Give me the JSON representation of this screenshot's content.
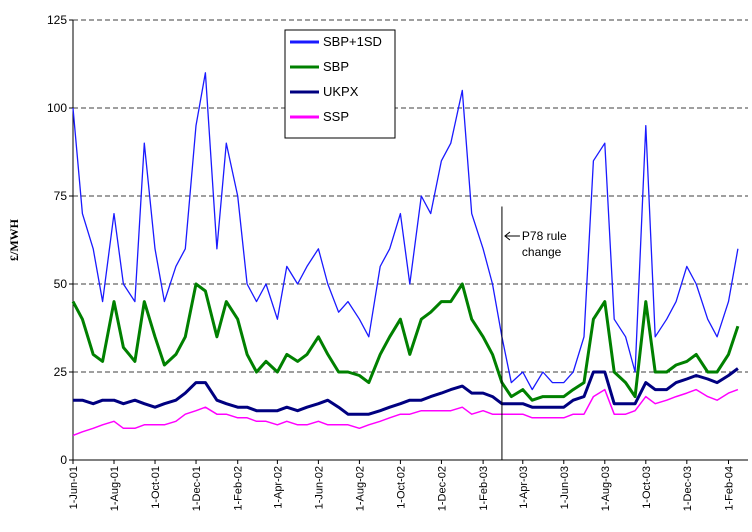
{
  "chart_data": {
    "type": "line",
    "ylabel": "£/MWH",
    "x": [
      "2001-06-01",
      "2001-06-15",
      "2001-07-01",
      "2001-07-15",
      "2001-08-01",
      "2001-08-15",
      "2001-09-01",
      "2001-09-15",
      "2001-10-01",
      "2001-10-15",
      "2001-11-01",
      "2001-11-15",
      "2001-12-01",
      "2001-12-15",
      "2002-01-01",
      "2002-01-15",
      "2002-02-01",
      "2002-02-15",
      "2002-03-01",
      "2002-03-15",
      "2002-04-01",
      "2002-04-15",
      "2002-05-01",
      "2002-05-15",
      "2002-06-01",
      "2002-06-15",
      "2002-07-01",
      "2002-07-15",
      "2002-08-01",
      "2002-08-15",
      "2002-09-01",
      "2002-09-15",
      "2002-10-01",
      "2002-10-15",
      "2002-11-01",
      "2002-11-15",
      "2002-12-01",
      "2002-12-15",
      "2003-01-01",
      "2003-01-15",
      "2003-02-01",
      "2003-02-15",
      "2003-03-01",
      "2003-03-15",
      "2003-04-01",
      "2003-04-15",
      "2003-05-01",
      "2003-05-15",
      "2003-06-01",
      "2003-06-15",
      "2003-07-01",
      "2003-07-15",
      "2003-08-01",
      "2003-08-15",
      "2003-09-01",
      "2003-09-15",
      "2003-10-01",
      "2003-10-15",
      "2003-11-01",
      "2003-11-15",
      "2003-12-01",
      "2003-12-15",
      "2004-01-01",
      "2004-01-15",
      "2004-02-01",
      "2004-02-15"
    ],
    "series": [
      {
        "name": "SBP+1SD",
        "color": "#1a1aff",
        "width": 1.3,
        "values": [
          100,
          70,
          60,
          45,
          70,
          50,
          45,
          90,
          60,
          45,
          55,
          60,
          95,
          110,
          60,
          90,
          75,
          50,
          45,
          50,
          40,
          55,
          50,
          55,
          60,
          50,
          42,
          45,
          40,
          35,
          55,
          60,
          70,
          50,
          75,
          70,
          85,
          90,
          105,
          70,
          60,
          50,
          35,
          22,
          25,
          20,
          25,
          22,
          22,
          25,
          35,
          85,
          90,
          40,
          35,
          25,
          95,
          35,
          40,
          45,
          55,
          50,
          40,
          35,
          45,
          60
        ]
      },
      {
        "name": "SBP",
        "color": "#008000",
        "width": 3,
        "values": [
          45,
          40,
          30,
          28,
          45,
          32,
          28,
          45,
          35,
          27,
          30,
          35,
          50,
          48,
          35,
          45,
          40,
          30,
          25,
          28,
          25,
          30,
          28,
          30,
          35,
          30,
          25,
          25,
          24,
          22,
          30,
          35,
          40,
          30,
          40,
          42,
          45,
          45,
          50,
          40,
          35,
          30,
          22,
          18,
          20,
          17,
          18,
          18,
          18,
          20,
          22,
          40,
          45,
          25,
          22,
          18,
          45,
          25,
          25,
          27,
          28,
          30,
          25,
          25,
          30,
          38
        ]
      },
      {
        "name": "UKPX",
        "color": "#000080",
        "width": 3,
        "values": [
          17,
          17,
          16,
          17,
          17,
          16,
          17,
          16,
          15,
          16,
          17,
          19,
          22,
          22,
          17,
          16,
          15,
          15,
          14,
          14,
          14,
          15,
          14,
          15,
          16,
          17,
          15,
          13,
          13,
          13,
          14,
          15,
          16,
          17,
          17,
          18,
          19,
          20,
          21,
          19,
          19,
          18,
          16,
          16,
          16,
          15,
          15,
          15,
          15,
          17,
          18,
          25,
          25,
          16,
          16,
          16,
          22,
          20,
          20,
          22,
          23,
          24,
          23,
          22,
          24,
          26
        ]
      },
      {
        "name": "SSP",
        "color": "#ff00ff",
        "width": 1.5,
        "values": [
          7,
          8,
          9,
          10,
          11,
          9,
          9,
          10,
          10,
          10,
          11,
          13,
          14,
          15,
          13,
          13,
          12,
          12,
          11,
          11,
          10,
          11,
          10,
          10,
          11,
          10,
          10,
          10,
          9,
          10,
          11,
          12,
          13,
          13,
          14,
          14,
          14,
          14,
          15,
          13,
          14,
          13,
          13,
          13,
          13,
          12,
          12,
          12,
          12,
          13,
          13,
          18,
          20,
          13,
          13,
          14,
          18,
          16,
          17,
          18,
          19,
          20,
          18,
          17,
          19,
          20
        ]
      }
    ],
    "xlim": [
      "2001-06-01",
      "2004-03-01"
    ],
    "xticks": [
      {
        "value": "2001-06-01",
        "label": "1-Jun-01"
      },
      {
        "value": "2001-08-01",
        "label": "1-Aug-01"
      },
      {
        "value": "2001-10-01",
        "label": "1-Oct-01"
      },
      {
        "value": "2001-12-01",
        "label": "1-Dec-01"
      },
      {
        "value": "2002-02-01",
        "label": "1-Feb-02"
      },
      {
        "value": "2002-04-01",
        "label": "1-Apr-02"
      },
      {
        "value": "2002-06-01",
        "label": "1-Jun-02"
      },
      {
        "value": "2002-08-01",
        "label": "1-Aug-02"
      },
      {
        "value": "2002-10-01",
        "label": "1-Oct-02"
      },
      {
        "value": "2002-12-01",
        "label": "1-Dec-02"
      },
      {
        "value": "2003-02-01",
        "label": "1-Feb-03"
      },
      {
        "value": "2003-04-01",
        "label": "1-Apr-03"
      },
      {
        "value": "2003-06-01",
        "label": "1-Jun-03"
      },
      {
        "value": "2003-08-01",
        "label": "1-Aug-03"
      },
      {
        "value": "2003-10-01",
        "label": "1-Oct-03"
      },
      {
        "value": "2003-12-01",
        "label": "1-Dec-03"
      },
      {
        "value": "2004-02-01",
        "label": "1-Feb-04"
      }
    ],
    "ylim": [
      0,
      125
    ],
    "yticks": [
      0,
      25,
      50,
      75,
      100,
      125
    ],
    "grid": true,
    "legend": "upper-center",
    "annotation": {
      "lines": [
        "P78 rule",
        "change"
      ],
      "x": "2003-03-01"
    }
  }
}
